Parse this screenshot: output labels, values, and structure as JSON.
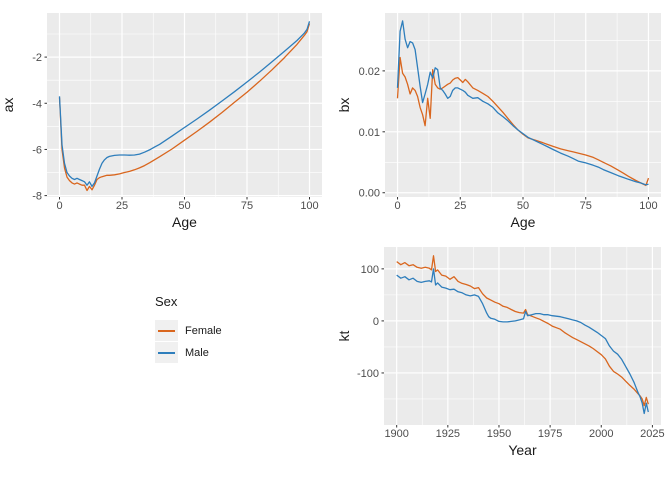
{
  "palette": {
    "female": "#D9661E",
    "male": "#2E7EBC",
    "panel_bg": "#EBEBEB",
    "grid_major": "#FFFFFF",
    "grid_minor": "#FFFFFF",
    "tick_color": "#333333",
    "tick_label_color": "#4D4D4D",
    "axis_title_color": "#1A1A1A",
    "legend_key_bg": "#F0F0F0",
    "page_bg": "#FFFFFF"
  },
  "legend": {
    "title": "Sex",
    "items": [
      {
        "label": "Female",
        "color_key": "female"
      },
      {
        "label": "Male",
        "color_key": "male"
      }
    ]
  },
  "chart_data": [
    {
      "id": "ax",
      "type": "line",
      "title": "",
      "xlabel": "Age",
      "ylabel": "ax",
      "xlim": [
        -5,
        105
      ],
      "ylim": [
        -8.06,
        -0.09
      ],
      "xticks": [
        0,
        25,
        50,
        75,
        100
      ],
      "xtick_labels": [
        "0",
        "25",
        "50",
        "75",
        "100"
      ],
      "yticks": [
        -8,
        -6,
        -4,
        -2
      ],
      "ytick_labels": [
        "-8",
        "-6",
        "-4",
        "-2"
      ],
      "x_minor": [
        12.5,
        37.5,
        62.5,
        87.5
      ],
      "y_minor": [
        -7,
        -5,
        -3,
        -1
      ],
      "grid": true,
      "legend_position": "none",
      "x": [
        0,
        1,
        2,
        3,
        4,
        5,
        6,
        7,
        8,
        9,
        10,
        11,
        12,
        13,
        14,
        15,
        16,
        17,
        18,
        19,
        20,
        22,
        24,
        26,
        28,
        30,
        32,
        34,
        36,
        38,
        40,
        45,
        50,
        55,
        60,
        65,
        70,
        75,
        80,
        85,
        90,
        95,
        98,
        99,
        100
      ],
      "series": [
        {
          "name": "Female",
          "color_key": "female",
          "y": [
            -3.75,
            -6.0,
            -6.8,
            -7.2,
            -7.35,
            -7.45,
            -7.5,
            -7.45,
            -7.5,
            -7.55,
            -7.55,
            -7.78,
            -7.6,
            -7.75,
            -7.55,
            -7.3,
            -7.22,
            -7.18,
            -7.15,
            -7.12,
            -7.12,
            -7.1,
            -7.06,
            -7.0,
            -6.95,
            -6.88,
            -6.8,
            -6.7,
            -6.58,
            -6.45,
            -6.32,
            -5.98,
            -5.6,
            -5.22,
            -4.82,
            -4.4,
            -3.96,
            -3.52,
            -3.05,
            -2.55,
            -2.02,
            -1.45,
            -1.05,
            -0.9,
            -0.55
          ]
        },
        {
          "name": "Male",
          "color_key": "male",
          "y": [
            -3.7,
            -5.8,
            -6.6,
            -7.0,
            -7.15,
            -7.25,
            -7.3,
            -7.25,
            -7.3,
            -7.35,
            -7.4,
            -7.55,
            -7.4,
            -7.6,
            -7.45,
            -7.15,
            -6.85,
            -6.6,
            -6.45,
            -6.35,
            -6.3,
            -6.26,
            -6.24,
            -6.24,
            -6.25,
            -6.24,
            -6.2,
            -6.12,
            -6.02,
            -5.9,
            -5.78,
            -5.42,
            -5.05,
            -4.68,
            -4.3,
            -3.9,
            -3.5,
            -3.08,
            -2.65,
            -2.2,
            -1.75,
            -1.28,
            -0.95,
            -0.8,
            -0.45
          ]
        }
      ]
    },
    {
      "id": "bx",
      "type": "line",
      "title": "",
      "xlabel": "Age",
      "ylabel": "bx",
      "xlim": [
        -5,
        105
      ],
      "ylim": [
        -0.0007,
        0.0295
      ],
      "xticks": [
        0,
        25,
        50,
        75,
        100
      ],
      "xtick_labels": [
        "0",
        "25",
        "50",
        "75",
        "100"
      ],
      "yticks": [
        0,
        0.01,
        0.02
      ],
      "ytick_labels": [
        "0.00",
        "0.01",
        "0.02"
      ],
      "x_minor": [
        12.5,
        37.5,
        62.5,
        87.5
      ],
      "y_minor": [
        0.005,
        0.015,
        0.025
      ],
      "grid": true,
      "legend_position": "none",
      "x": [
        0,
        1,
        2,
        3,
        4,
        5,
        6,
        7,
        8,
        9,
        10,
        11,
        12,
        13,
        14,
        15,
        16,
        17,
        18,
        19,
        20,
        21,
        22,
        23,
        24,
        25,
        26,
        27,
        28,
        30,
        32,
        34,
        36,
        38,
        40,
        42,
        44,
        46,
        48,
        50,
        52,
        55,
        58,
        60,
        62,
        65,
        68,
        70,
        72,
        75,
        78,
        80,
        82,
        85,
        88,
        90,
        92,
        95,
        97,
        99,
        100
      ],
      "series": [
        {
          "name": "Female",
          "color_key": "female",
          "y": [
            0.0155,
            0.0222,
            0.0196,
            0.019,
            0.0178,
            0.0162,
            0.0172,
            0.0168,
            0.0158,
            0.014,
            0.0128,
            0.011,
            0.0155,
            0.0122,
            0.0202,
            0.0178,
            0.0172,
            0.017,
            0.0172,
            0.0175,
            0.0178,
            0.018,
            0.0185,
            0.0188,
            0.0189,
            0.0185,
            0.0181,
            0.0186,
            0.0182,
            0.0172,
            0.0168,
            0.0163,
            0.0158,
            0.015,
            0.0141,
            0.0132,
            0.0122,
            0.0112,
            0.0103,
            0.0096,
            0.009,
            0.0086,
            0.0082,
            0.0079,
            0.0076,
            0.0072,
            0.0069,
            0.0067,
            0.0065,
            0.0062,
            0.0058,
            0.0054,
            0.005,
            0.0044,
            0.0037,
            0.0032,
            0.0027,
            0.002,
            0.0016,
            0.0012,
            0.0024
          ]
        },
        {
          "name": "Male",
          "color_key": "male",
          "y": [
            0.0172,
            0.0265,
            0.0282,
            0.0252,
            0.0238,
            0.0248,
            0.0246,
            0.0235,
            0.0205,
            0.0175,
            0.0148,
            0.0162,
            0.0178,
            0.0198,
            0.0188,
            0.0205,
            0.0202,
            0.0172,
            0.0168,
            0.0162,
            0.0155,
            0.0158,
            0.0168,
            0.0172,
            0.0172,
            0.017,
            0.0168,
            0.0165,
            0.016,
            0.0155,
            0.0156,
            0.015,
            0.0146,
            0.014,
            0.0131,
            0.0125,
            0.0118,
            0.011,
            0.0103,
            0.0097,
            0.0091,
            0.0085,
            0.0079,
            0.0075,
            0.0071,
            0.0065,
            0.006,
            0.0056,
            0.0052,
            0.0049,
            0.0045,
            0.0042,
            0.0038,
            0.0033,
            0.0028,
            0.0025,
            0.0022,
            0.0018,
            0.0016,
            0.0013,
            0.0014
          ]
        }
      ]
    },
    {
      "id": "kt",
      "type": "line",
      "title": "",
      "xlabel": "Year",
      "ylabel": "kt",
      "xlim": [
        1893.8,
        2029.2
      ],
      "ylim": [
        -200,
        142
      ],
      "xticks": [
        1900,
        1925,
        1950,
        1975,
        2000,
        2025
      ],
      "xtick_labels": [
        "1900",
        "1925",
        "1950",
        "1975",
        "2000",
        "2025"
      ],
      "yticks": [
        -100,
        0,
        100
      ],
      "ytick_labels": [
        "-100",
        "0",
        "100"
      ],
      "x_minor": [
        1912.5,
        1937.5,
        1962.5,
        1987.5,
        2012.5
      ],
      "y_minor": [
        -150,
        -50,
        50
      ],
      "grid": true,
      "legend_position": "none",
      "x": [
        1900,
        1902,
        1904,
        1906,
        1908,
        1910,
        1912,
        1914,
        1916,
        1917,
        1918,
        1919,
        1920,
        1922,
        1924,
        1926,
        1928,
        1930,
        1932,
        1934,
        1936,
        1938,
        1940,
        1942,
        1944,
        1945,
        1946,
        1948,
        1950,
        1952,
        1954,
        1956,
        1958,
        1960,
        1962,
        1963,
        1964,
        1966,
        1968,
        1970,
        1972,
        1974,
        1976,
        1978,
        1980,
        1982,
        1984,
        1986,
        1988,
        1990,
        1992,
        1994,
        1996,
        1998,
        2000,
        2002,
        2004,
        2006,
        2008,
        2010,
        2012,
        2014,
        2016,
        2018,
        2019,
        2020,
        2021,
        2022,
        2023
      ],
      "series": [
        {
          "name": "Female",
          "color_key": "female",
          "y": [
            114,
            108,
            112,
            106,
            108,
            103,
            101,
            103,
            101,
            98,
            125,
            95,
            98,
            88,
            86,
            80,
            85,
            76,
            72,
            70,
            67,
            62,
            64,
            52,
            44,
            42,
            40,
            36,
            33,
            28,
            26,
            22,
            18,
            16,
            15,
            22,
            12,
            9,
            6,
            3,
            -1,
            -5,
            -10,
            -13,
            -16,
            -22,
            -27,
            -32,
            -36,
            -40,
            -44,
            -48,
            -53,
            -59,
            -65,
            -73,
            -87,
            -97,
            -102,
            -108,
            -116,
            -124,
            -131,
            -140,
            -144,
            -150,
            -163,
            -147,
            -160
          ]
        },
        {
          "name": "Male",
          "color_key": "male",
          "y": [
            88,
            82,
            85,
            79,
            82,
            76,
            74,
            76,
            77,
            75,
            100,
            69,
            73,
            65,
            63,
            60,
            61,
            56,
            54,
            50,
            48,
            50,
            47,
            33,
            15,
            8,
            5,
            3,
            -1,
            -2,
            -2,
            -1,
            0,
            2,
            4,
            18,
            10,
            12,
            14,
            14,
            12,
            12,
            10,
            9,
            8,
            6,
            4,
            2,
            0,
            -3,
            -8,
            -12,
            -17,
            -22,
            -28,
            -34,
            -48,
            -58,
            -64,
            -74,
            -88,
            -102,
            -118,
            -138,
            -146,
            -158,
            -178,
            -158,
            -175
          ]
        }
      ]
    }
  ]
}
